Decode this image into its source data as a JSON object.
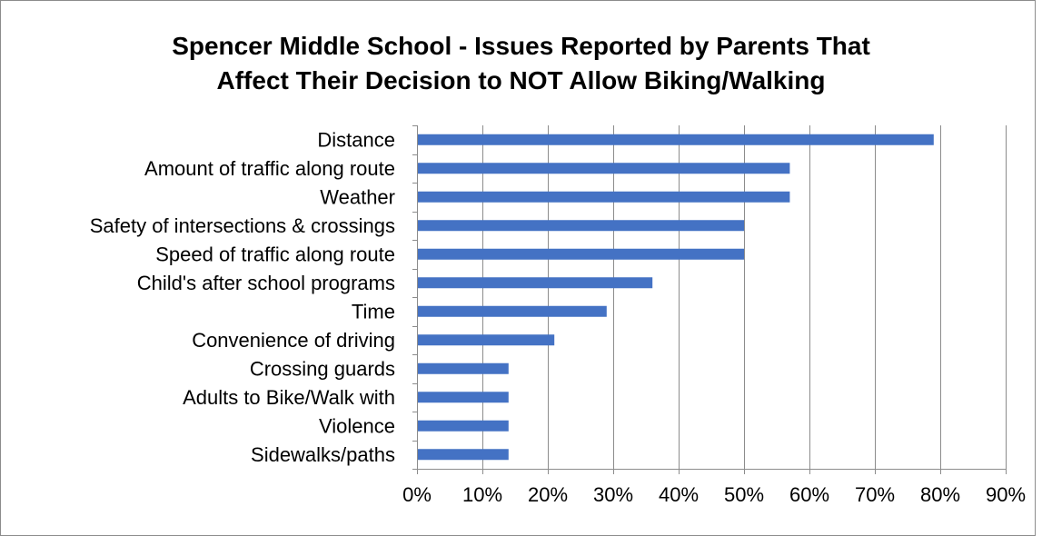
{
  "chart_data": {
    "type": "bar",
    "orientation": "horizontal",
    "title_lines": [
      "Spencer Middle School - Issues Reported by Parents That",
      "Affect Their Decision to NOT Allow Biking/Walking"
    ],
    "categories": [
      "Distance",
      "Amount of traffic along route",
      "Weather",
      "Safety of intersections & crossings",
      "Speed of traffic along route",
      "Child's after school programs",
      "Time",
      "Convenience of driving",
      "Crossing guards",
      "Adults to Bike/Walk with",
      "Violence",
      "Sidewalks/paths"
    ],
    "values": [
      79,
      57,
      57,
      50,
      50,
      36,
      29,
      21,
      14,
      14,
      14,
      14
    ],
    "xlim": [
      0,
      90
    ],
    "xticks": [
      0,
      10,
      20,
      30,
      40,
      50,
      60,
      70,
      80,
      90
    ],
    "xtick_labels": [
      "0%",
      "10%",
      "20%",
      "30%",
      "40%",
      "50%",
      "60%",
      "70%",
      "80%",
      "90%"
    ],
    "xlabel": "",
    "ylabel": "",
    "grid": "vertical",
    "legend": "none",
    "bar_color": "#4472C4",
    "grid_color": "#8C8C8C"
  }
}
